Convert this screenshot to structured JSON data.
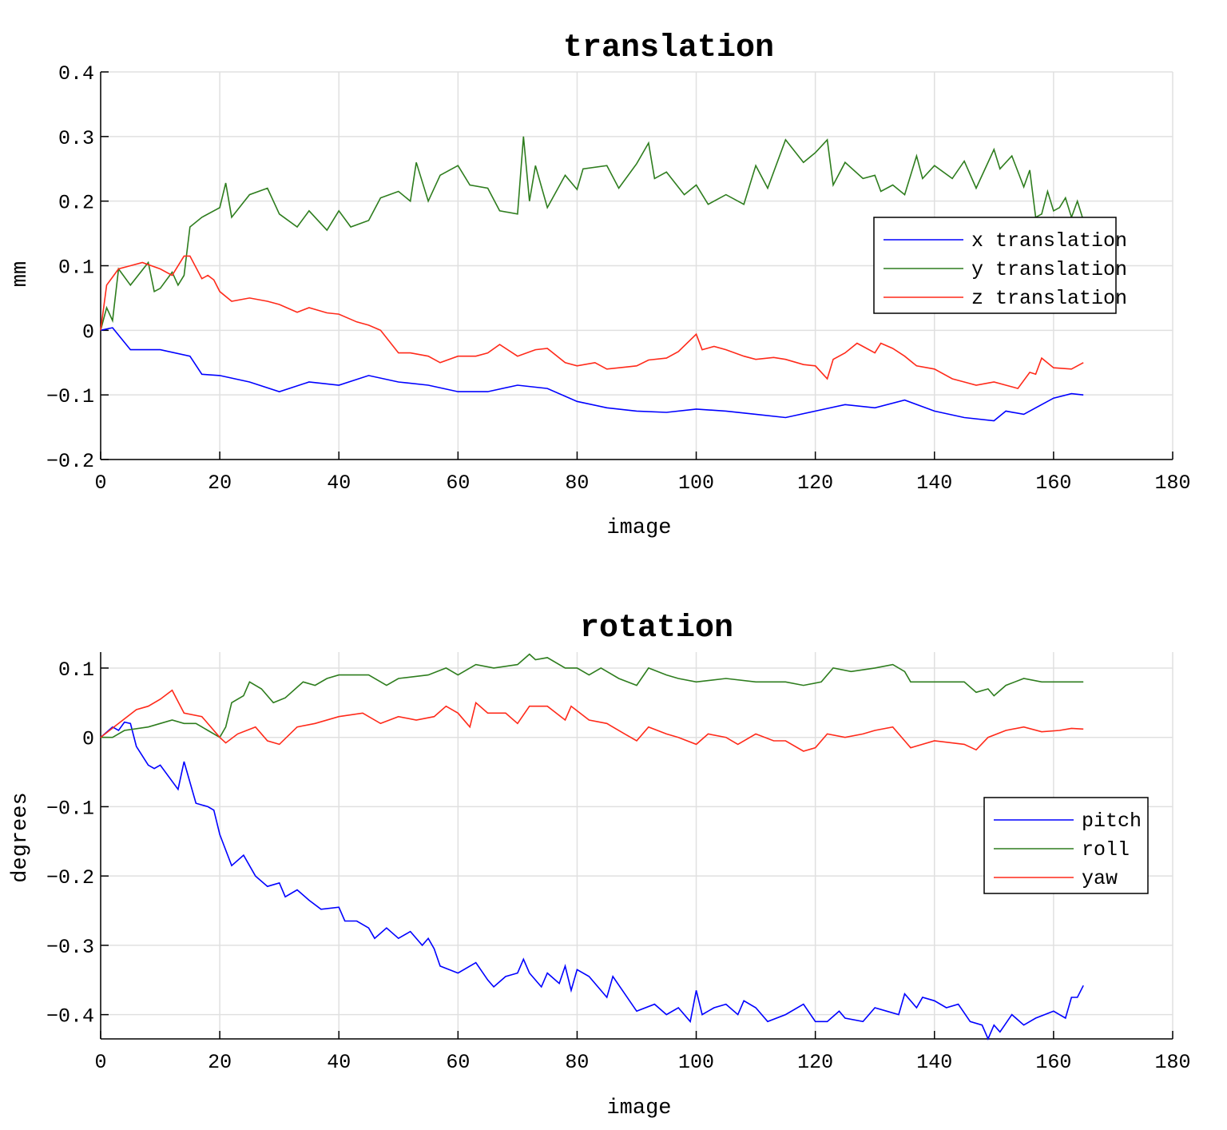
{
  "chart_data": [
    {
      "type": "line",
      "title": "translation",
      "xlabel": "image",
      "ylabel": "mm",
      "xlim": [
        0,
        180
      ],
      "ylim": [
        -0.2,
        0.4
      ],
      "xticks": [
        0,
        20,
        40,
        60,
        80,
        100,
        120,
        140,
        160,
        180
      ],
      "yticks": [
        -0.2,
        -0.1,
        0,
        0.1,
        0.2,
        0.3,
        0.4
      ],
      "ytick_labels": [
        "−0.2",
        "−0.1",
        "0",
        "0.1",
        "0.2",
        "0.3",
        "0.4"
      ],
      "grid": true,
      "legend_position": "right",
      "series": [
        {
          "name": "x translation",
          "color": "#0000ff",
          "x": [
            0,
            2,
            5,
            10,
            15,
            17,
            20,
            25,
            30,
            35,
            40,
            45,
            50,
            55,
            60,
            65,
            70,
            75,
            80,
            85,
            90,
            95,
            100,
            105,
            110,
            115,
            120,
            125,
            130,
            135,
            140,
            145,
            150,
            152,
            155,
            160,
            163,
            165
          ],
          "y": [
            0,
            0.004,
            -0.03,
            -0.03,
            -0.04,
            -0.068,
            -0.07,
            -0.08,
            -0.095,
            -0.08,
            -0.085,
            -0.07,
            -0.08,
            -0.085,
            -0.095,
            -0.095,
            -0.085,
            -0.09,
            -0.11,
            -0.12,
            -0.125,
            -0.127,
            -0.122,
            -0.125,
            -0.13,
            -0.135,
            -0.125,
            -0.115,
            -0.12,
            -0.108,
            -0.125,
            -0.135,
            -0.14,
            -0.125,
            -0.13,
            -0.105,
            -0.098,
            -0.1
          ]
        },
        {
          "name": "y translation",
          "color": "#2e7d1e",
          "x": [
            0,
            1,
            2,
            3,
            5,
            8,
            9,
            10,
            12,
            13,
            14,
            15,
            17,
            20,
            21,
            22,
            25,
            28,
            30,
            33,
            35,
            38,
            40,
            42,
            45,
            47,
            50,
            52,
            53,
            55,
            57,
            60,
            62,
            65,
            67,
            70,
            71,
            72,
            73,
            75,
            78,
            80,
            81,
            85,
            87,
            90,
            92,
            93,
            95,
            98,
            100,
            102,
            105,
            108,
            110,
            112,
            115,
            118,
            120,
            122,
            123,
            125,
            128,
            130,
            131,
            133,
            135,
            137,
            138,
            140,
            143,
            145,
            147,
            150,
            151,
            153,
            155,
            156,
            157,
            158,
            159,
            160,
            161,
            162,
            163,
            164,
            165
          ],
          "y": [
            0,
            0.035,
            0.015,
            0.095,
            0.07,
            0.105,
            0.06,
            0.065,
            0.09,
            0.07,
            0.085,
            0.16,
            0.175,
            0.19,
            0.228,
            0.175,
            0.21,
            0.22,
            0.18,
            0.16,
            0.185,
            0.155,
            0.185,
            0.16,
            0.17,
            0.205,
            0.215,
            0.2,
            0.26,
            0.2,
            0.24,
            0.255,
            0.225,
            0.22,
            0.185,
            0.18,
            0.3,
            0.2,
            0.255,
            0.19,
            0.24,
            0.218,
            0.25,
            0.255,
            0.22,
            0.258,
            0.29,
            0.235,
            0.245,
            0.21,
            0.225,
            0.195,
            0.21,
            0.195,
            0.255,
            0.22,
            0.295,
            0.26,
            0.275,
            0.295,
            0.225,
            0.26,
            0.235,
            0.24,
            0.215,
            0.225,
            0.21,
            0.27,
            0.235,
            0.255,
            0.235,
            0.262,
            0.22,
            0.28,
            0.25,
            0.27,
            0.222,
            0.248,
            0.175,
            0.18,
            0.215,
            0.185,
            0.19,
            0.205,
            0.175,
            0.2,
            0.17
          ]
        },
        {
          "name": "z translation",
          "color": "#ff2a1a",
          "x": [
            0,
            1,
            3,
            5,
            7,
            10,
            12,
            14,
            15,
            17,
            18,
            19,
            20,
            22,
            25,
            28,
            30,
            33,
            35,
            38,
            40,
            43,
            45,
            47,
            50,
            52,
            55,
            57,
            60,
            63,
            65,
            67,
            70,
            73,
            75,
            78,
            80,
            83,
            85,
            88,
            90,
            92,
            95,
            97,
            100,
            101,
            103,
            105,
            108,
            110,
            113,
            115,
            118,
            120,
            122,
            123,
            125,
            127,
            128,
            130,
            131,
            133,
            135,
            137,
            140,
            143,
            145,
            147,
            150,
            152,
            154,
            156,
            157,
            158,
            160,
            163,
            165
          ],
          "y": [
            0,
            0.07,
            0.095,
            0.1,
            0.105,
            0.095,
            0.085,
            0.115,
            0.115,
            0.08,
            0.085,
            0.078,
            0.06,
            0.045,
            0.05,
            0.045,
            0.04,
            0.028,
            0.035,
            0.027,
            0.025,
            0.013,
            0.008,
            0,
            -0.035,
            -0.035,
            -0.04,
            -0.05,
            -0.04,
            -0.04,
            -0.035,
            -0.022,
            -0.04,
            -0.03,
            -0.028,
            -0.05,
            -0.055,
            -0.05,
            -0.06,
            -0.057,
            -0.055,
            -0.046,
            -0.043,
            -0.033,
            -0.006,
            -0.03,
            -0.025,
            -0.03,
            -0.04,
            -0.045,
            -0.042,
            -0.045,
            -0.053,
            -0.055,
            -0.075,
            -0.045,
            -0.035,
            -0.02,
            -0.025,
            -0.035,
            -0.02,
            -0.028,
            -0.04,
            -0.055,
            -0.06,
            -0.075,
            -0.08,
            -0.085,
            -0.08,
            -0.085,
            -0.09,
            -0.065,
            -0.068,
            -0.043,
            -0.058,
            -0.06,
            -0.05
          ]
        }
      ]
    },
    {
      "type": "line",
      "title": "rotation",
      "xlabel": "image",
      "ylabel": "degrees",
      "xlim": [
        0,
        180
      ],
      "ylim": [
        -0.435,
        0.123
      ],
      "xticks": [
        0,
        20,
        40,
        60,
        80,
        100,
        120,
        140,
        160,
        180
      ],
      "yticks": [
        -0.4,
        -0.3,
        -0.2,
        -0.1,
        0,
        0.1
      ],
      "ytick_labels": [
        "−0.4",
        "−0.3",
        "−0.2",
        "−0.1",
        "0",
        "0.1"
      ],
      "grid": true,
      "legend_position": "right",
      "series": [
        {
          "name": "pitch",
          "color": "#0000ff",
          "x": [
            0,
            2,
            3,
            4,
            5,
            6,
            8,
            9,
            10,
            13,
            14,
            16,
            18,
            19,
            20,
            22,
            24,
            26,
            28,
            30,
            31,
            33,
            35,
            37,
            40,
            41,
            43,
            45,
            46,
            48,
            50,
            52,
            54,
            55,
            56,
            57,
            60,
            62,
            63,
            65,
            66,
            68,
            70,
            71,
            72,
            74,
            75,
            77,
            78,
            79,
            80,
            82,
            85,
            86,
            88,
            90,
            93,
            95,
            97,
            99,
            100,
            101,
            103,
            105,
            107,
            108,
            110,
            112,
            115,
            118,
            120,
            122,
            124,
            125,
            128,
            130,
            132,
            134,
            135,
            137,
            138,
            140,
            142,
            144,
            146,
            148,
            149,
            150,
            151,
            153,
            155,
            157,
            160,
            162,
            163,
            164,
            165
          ],
          "y": [
            0,
            0.015,
            0.01,
            0.022,
            0.02,
            -0.013,
            -0.04,
            -0.045,
            -0.04,
            -0.075,
            -0.035,
            -0.095,
            -0.1,
            -0.105,
            -0.14,
            -0.185,
            -0.17,
            -0.2,
            -0.215,
            -0.21,
            -0.23,
            -0.22,
            -0.235,
            -0.248,
            -0.245,
            -0.265,
            -0.265,
            -0.275,
            -0.29,
            -0.275,
            -0.29,
            -0.28,
            -0.3,
            -0.29,
            -0.305,
            -0.33,
            -0.34,
            -0.33,
            -0.325,
            -0.35,
            -0.36,
            -0.345,
            -0.34,
            -0.32,
            -0.34,
            -0.36,
            -0.34,
            -0.355,
            -0.33,
            -0.365,
            -0.335,
            -0.345,
            -0.375,
            -0.345,
            -0.37,
            -0.395,
            -0.385,
            -0.4,
            -0.39,
            -0.41,
            -0.365,
            -0.4,
            -0.39,
            -0.385,
            -0.4,
            -0.38,
            -0.39,
            -0.41,
            -0.4,
            -0.385,
            -0.41,
            -0.41,
            -0.395,
            -0.405,
            -0.41,
            -0.39,
            -0.395,
            -0.4,
            -0.37,
            -0.39,
            -0.375,
            -0.38,
            -0.39,
            -0.385,
            -0.41,
            -0.415,
            -0.435,
            -0.415,
            -0.425,
            -0.4,
            -0.415,
            -0.405,
            -0.395,
            -0.405,
            -0.375,
            -0.375,
            -0.358
          ]
        },
        {
          "name": "roll",
          "color": "#2e7d1e",
          "x": [
            0,
            2,
            4,
            8,
            10,
            12,
            14,
            16,
            18,
            20,
            21,
            22,
            24,
            25,
            27,
            29,
            31,
            34,
            36,
            38,
            40,
            45,
            48,
            50,
            55,
            58,
            60,
            63,
            66,
            70,
            72,
            73,
            75,
            78,
            80,
            82,
            84,
            87,
            90,
            92,
            95,
            97,
            100,
            105,
            110,
            115,
            118,
            121,
            123,
            126,
            130,
            133,
            135,
            136,
            140,
            145,
            147,
            149,
            150,
            152,
            155,
            158,
            160,
            165
          ],
          "y": [
            0,
            0,
            0.01,
            0.015,
            0.02,
            0.025,
            0.02,
            0.02,
            0.01,
            0,
            0.015,
            0.05,
            0.06,
            0.08,
            0.07,
            0.05,
            0.057,
            0.08,
            0.075,
            0.085,
            0.09,
            0.09,
            0.075,
            0.085,
            0.09,
            0.1,
            0.09,
            0.105,
            0.1,
            0.105,
            0.12,
            0.112,
            0.115,
            0.1,
            0.1,
            0.09,
            0.1,
            0.085,
            0.075,
            0.1,
            0.09,
            0.085,
            0.08,
            0.085,
            0.08,
            0.08,
            0.075,
            0.08,
            0.1,
            0.095,
            0.1,
            0.105,
            0.095,
            0.08,
            0.08,
            0.08,
            0.065,
            0.07,
            0.06,
            0.075,
            0.085,
            0.08,
            0.08,
            0.08
          ]
        },
        {
          "name": "yaw",
          "color": "#ff2a1a",
          "x": [
            0,
            3,
            6,
            8,
            10,
            12,
            14,
            17,
            20,
            21,
            23,
            26,
            28,
            30,
            33,
            36,
            40,
            44,
            47,
            50,
            53,
            56,
            58,
            60,
            62,
            63,
            65,
            68,
            70,
            72,
            75,
            78,
            79,
            82,
            85,
            88,
            90,
            92,
            95,
            97,
            100,
            102,
            105,
            107,
            110,
            113,
            115,
            118,
            120,
            122,
            125,
            128,
            130,
            133,
            135,
            136,
            140,
            145,
            147,
            149,
            152,
            155,
            158,
            161,
            163,
            165
          ],
          "y": [
            0,
            0.02,
            0.04,
            0.045,
            0.055,
            0.068,
            0.035,
            0.03,
            0,
            -0.008,
            0.005,
            0.015,
            -0.005,
            -0.01,
            0.015,
            0.02,
            0.03,
            0.035,
            0.02,
            0.03,
            0.025,
            0.03,
            0.045,
            0.035,
            0.015,
            0.05,
            0.035,
            0.035,
            0.02,
            0.045,
            0.045,
            0.025,
            0.045,
            0.025,
            0.02,
            0.005,
            -0.005,
            0.015,
            0.005,
            0,
            -0.01,
            0.005,
            0,
            -0.01,
            0.005,
            -0.005,
            -0.005,
            -0.02,
            -0.015,
            0.005,
            0,
            0.005,
            0.01,
            0.015,
            -0.005,
            -0.015,
            -0.005,
            -0.01,
            -0.018,
            0,
            0.01,
            0.015,
            0.008,
            0.01,
            0.013,
            0.012
          ]
        }
      ]
    }
  ]
}
